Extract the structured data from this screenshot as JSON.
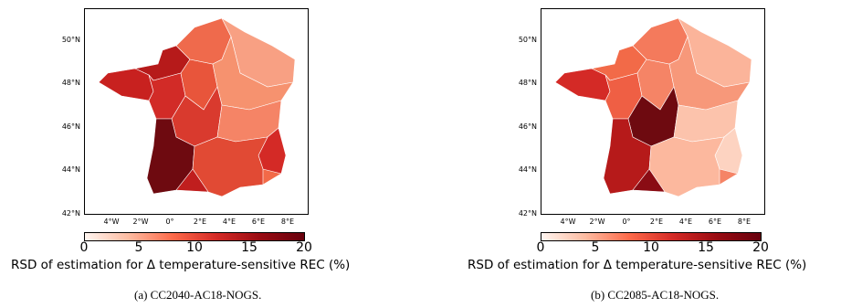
{
  "panels": [
    {
      "id": "a",
      "caption": "(a) CC2040-AC18-NOGS.",
      "colorbar_label": "RSD of estimation for Δ temperature-sensitive REC (%)",
      "colorbar_ticks": [
        "0",
        "5",
        "10",
        "15",
        "20"
      ],
      "lat_ticks": [
        "50°N",
        "48°N",
        "46°N",
        "44°N",
        "42°N"
      ],
      "lon_ticks": [
        "4°W",
        "2°W",
        "0°",
        "2°E",
        "4°E",
        "6°E",
        "8°E"
      ]
    },
    {
      "id": "b",
      "caption": "(b) CC2085-AC18-NOGS.",
      "colorbar_label": "RSD of estimation for Δ temperature-sensitive REC (%)",
      "colorbar_ticks": [
        "0",
        "5",
        "10",
        "15",
        "20"
      ],
      "lat_ticks": [
        "50°N",
        "48°N",
        "46°N",
        "44°N",
        "42°N"
      ],
      "lon_ticks": [
        "4°W",
        "2°W",
        "0°",
        "2°E",
        "4°E",
        "6°E",
        "8°E"
      ]
    }
  ],
  "colors": {
    "low": "#fff5f0",
    "mid": "#fc6a4a",
    "high": "#67000d"
  }
}
